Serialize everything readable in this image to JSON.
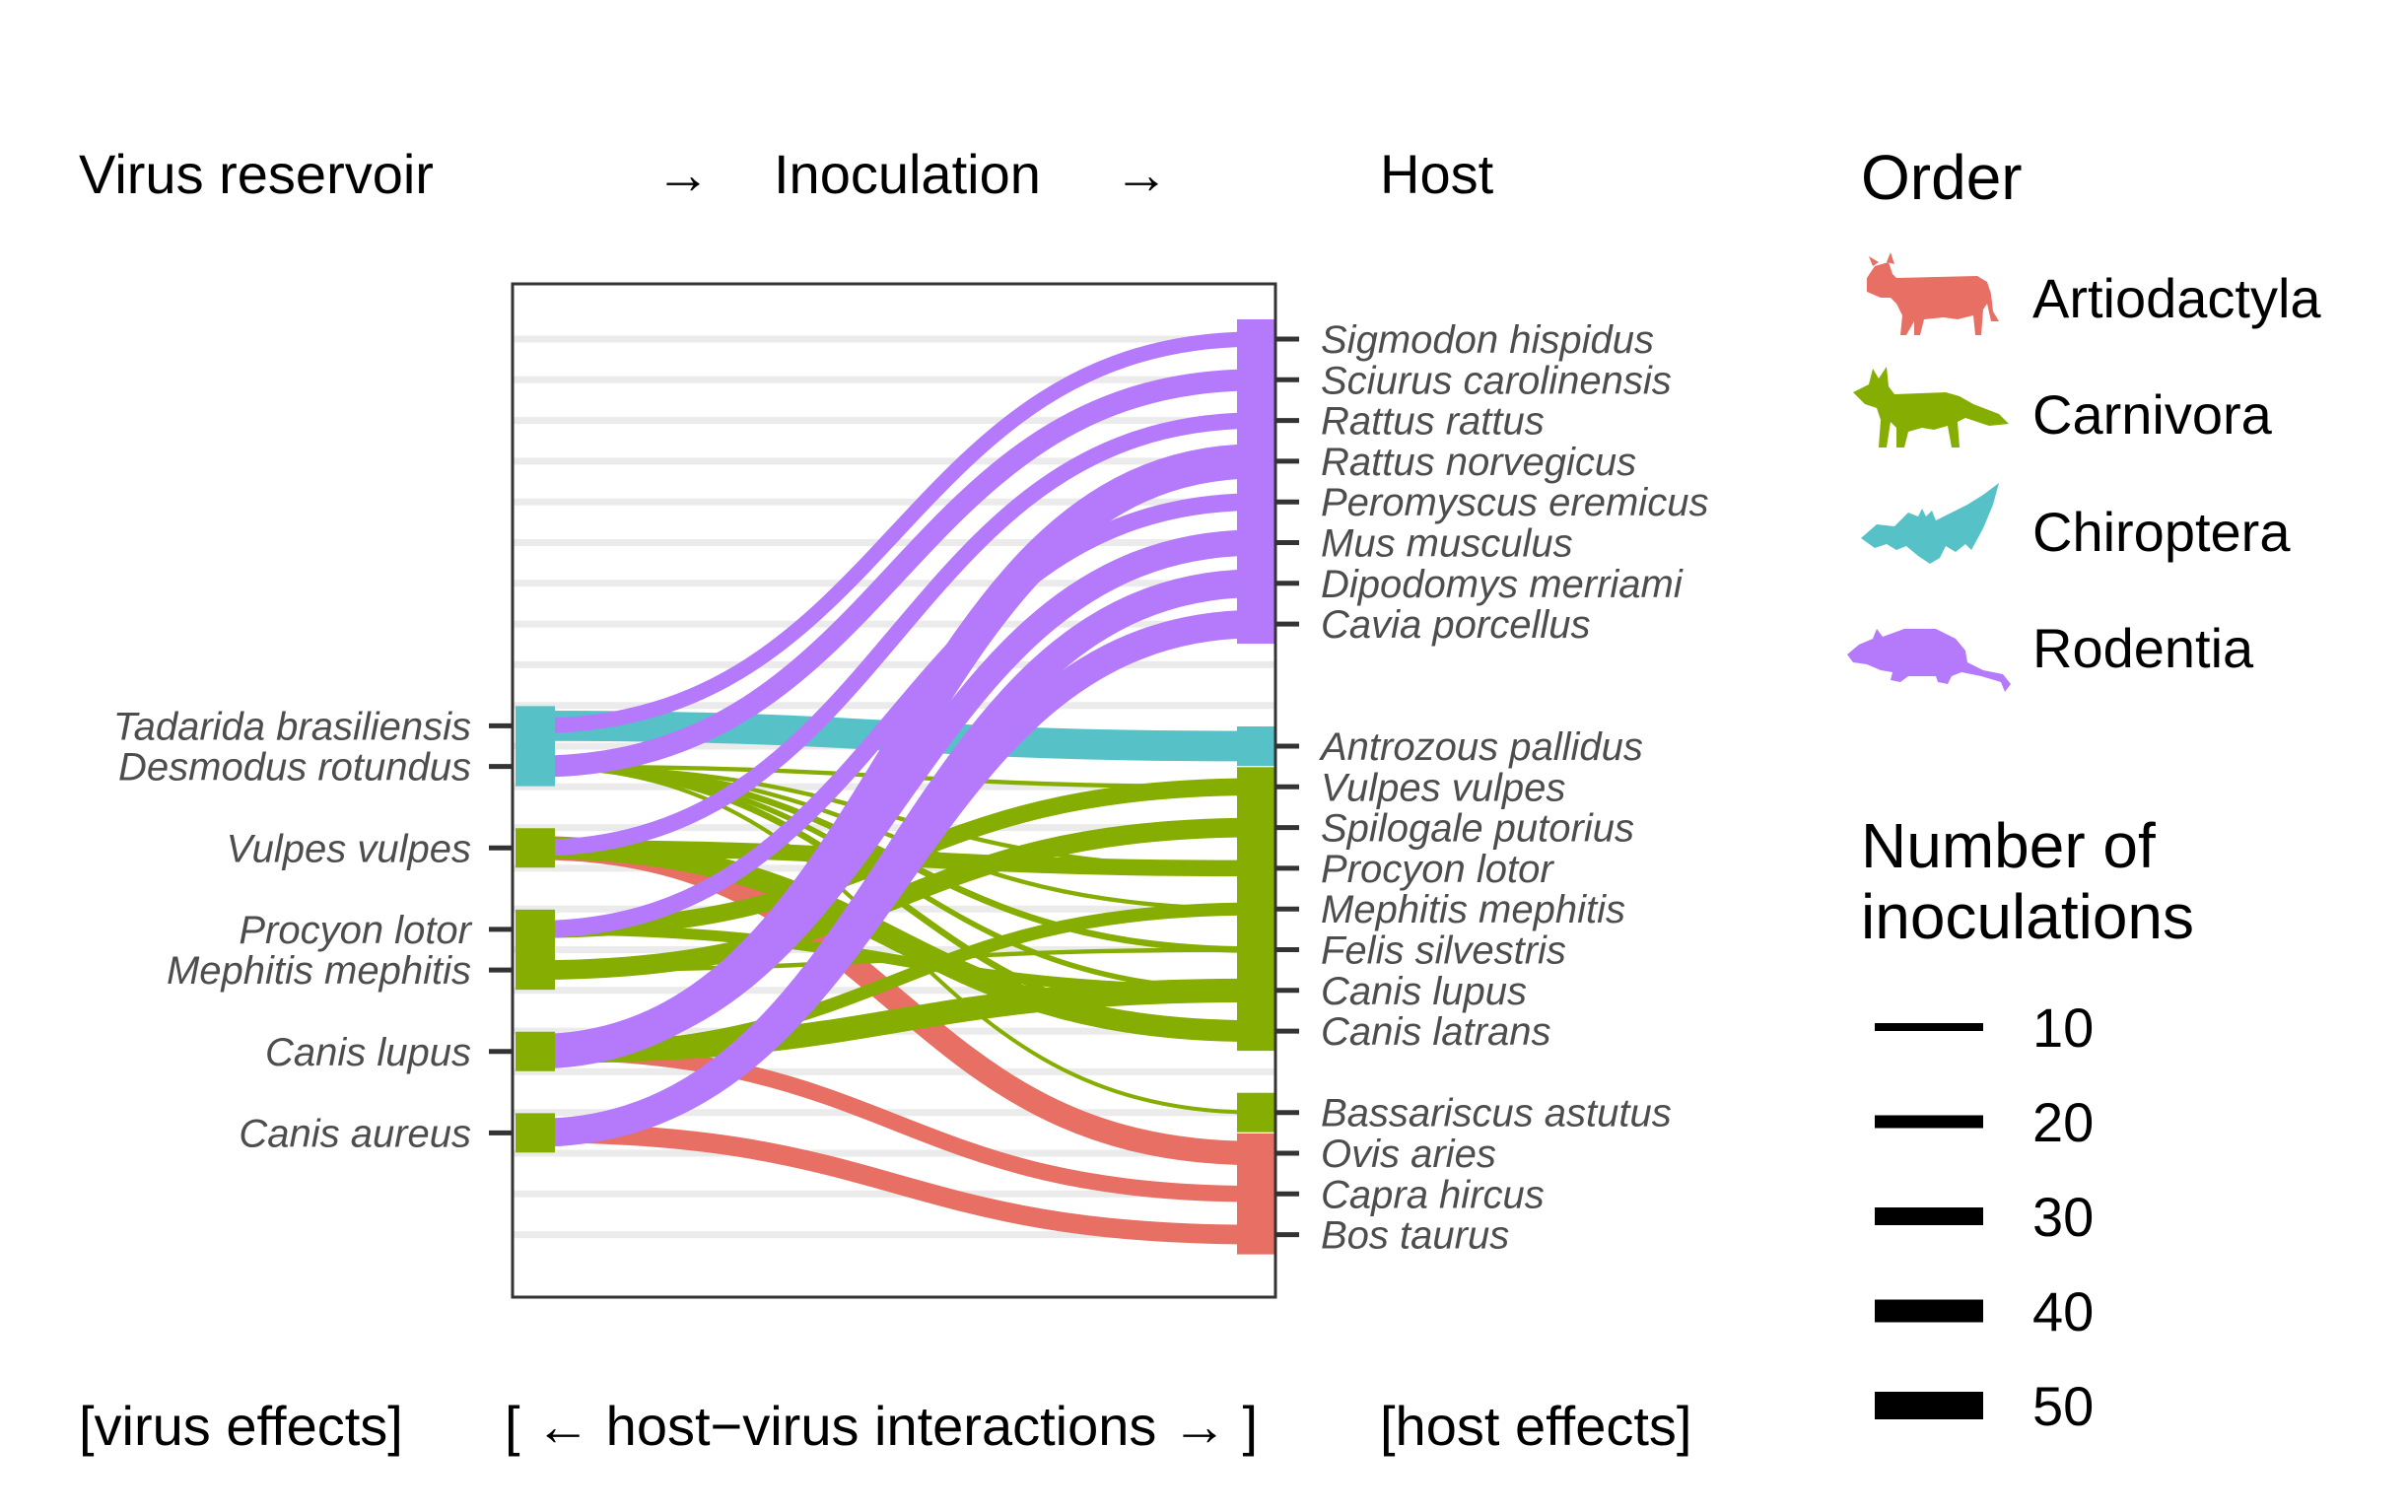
{
  "headers": {
    "reservoir": "Virus reservoir",
    "arrow1": "→",
    "inoculation": "Inoculation",
    "arrow2": "→",
    "host": "Host",
    "virus_effects": "[virus effects]",
    "interactions": "[ ← host−virus interactions → ]",
    "host_effects": "[host effects]"
  },
  "colors": {
    "Artiodactyla": "#E76F63",
    "Carnivora": "#86AE02",
    "Chiroptera": "#56C2C8",
    "Rodentia": "#B57AFB",
    "grid": "#ebebeb",
    "tick_text": "#4d4d4d"
  },
  "chart_data": {
    "type": "parallel-sets",
    "left_axis": {
      "rows": [
        {
          "label": "Tadarida brasiliensis",
          "order": "Chiroptera"
        },
        {
          "label": "Desmodus rotundus",
          "order": "Chiroptera"
        },
        {
          "label": "",
          "order": ""
        },
        {
          "label": "Vulpes vulpes",
          "order": "Carnivora"
        },
        {
          "label": "",
          "order": ""
        },
        {
          "label": "Procyon lotor",
          "order": "Carnivora"
        },
        {
          "label": "Mephitis mephitis",
          "order": "Carnivora"
        },
        {
          "label": "",
          "order": ""
        },
        {
          "label": "Canis lupus",
          "order": "Carnivora"
        },
        {
          "label": "",
          "order": ""
        },
        {
          "label": "Canis aureus",
          "order": "Carnivora"
        }
      ]
    },
    "right_axis": {
      "rows": [
        {
          "label": "Sigmodon hispidus",
          "order": "Rodentia"
        },
        {
          "label": "Sciurus carolinensis",
          "order": "Rodentia"
        },
        {
          "label": "Rattus rattus",
          "order": "Rodentia"
        },
        {
          "label": "Rattus norvegicus",
          "order": "Rodentia"
        },
        {
          "label": "Peromyscus eremicus",
          "order": "Rodentia"
        },
        {
          "label": "Mus musculus",
          "order": "Rodentia"
        },
        {
          "label": "Dipodomys merriami",
          "order": "Rodentia"
        },
        {
          "label": "Cavia porcellus",
          "order": "Rodentia"
        },
        {
          "label": "",
          "order": ""
        },
        {
          "label": "",
          "order": ""
        },
        {
          "label": "Antrozous pallidus",
          "order": "Chiroptera"
        },
        {
          "label": "Vulpes vulpes",
          "order": "Carnivora"
        },
        {
          "label": "Spilogale putorius",
          "order": "Carnivora"
        },
        {
          "label": "Procyon lotor",
          "order": "Carnivora"
        },
        {
          "label": "Mephitis mephitis",
          "order": "Carnivora"
        },
        {
          "label": "Felis silvestris",
          "order": "Carnivora"
        },
        {
          "label": "Canis lupus",
          "order": "Carnivora"
        },
        {
          "label": "Canis latrans",
          "order": "Carnivora"
        },
        {
          "label": "",
          "order": ""
        },
        {
          "label": "Bassariscus astutus",
          "order": "Carnivora"
        },
        {
          "label": "Ovis aries",
          "order": "Artiodactyla"
        },
        {
          "label": "Capra hircus",
          "order": "Artiodactyla"
        },
        {
          "label": "Bos taurus",
          "order": "Artiodactyla"
        }
      ]
    },
    "flows": [
      {
        "from": "Tadarida brasiliensis",
        "to": "Antrozous pallidus",
        "host_order": "Chiroptera",
        "n": 28
      },
      {
        "from": "Desmodus rotundus",
        "to": "Vulpes vulpes",
        "host_order": "Carnivora",
        "n": 4
      },
      {
        "from": "Desmodus rotundus",
        "to": "Procyon lotor",
        "host_order": "Carnivora",
        "n": 4
      },
      {
        "from": "Desmodus rotundus",
        "to": "Mephitis mephitis",
        "host_order": "Carnivora",
        "n": 4
      },
      {
        "from": "Desmodus rotundus",
        "to": "Felis silvestris",
        "host_order": "Carnivora",
        "n": 6
      },
      {
        "from": "Desmodus rotundus",
        "to": "Canis lupus",
        "host_order": "Carnivora",
        "n": 5
      },
      {
        "from": "Desmodus rotundus",
        "to": "Canis latrans",
        "host_order": "Carnivora",
        "n": 6
      },
      {
        "from": "Desmodus rotundus",
        "to": "Bassariscus astutus",
        "host_order": "Carnivora",
        "n": 3
      },
      {
        "from": "Tadarida brasiliensis",
        "to": "Sigmodon hispidus",
        "host_order": "Rodentia",
        "n": 14
      },
      {
        "from": "Desmodus rotundus",
        "to": "Sciurus carolinensis",
        "host_order": "Rodentia",
        "n": 20
      },
      {
        "from": "Vulpes vulpes",
        "to": "Rattus rattus",
        "host_order": "Rodentia",
        "n": 15
      },
      {
        "from": "Vulpes vulpes",
        "to": "Canis latrans",
        "host_order": "Carnivora",
        "n": 20
      },
      {
        "from": "Vulpes vulpes",
        "to": "Procyon lotor",
        "host_order": "Carnivora",
        "n": 15
      },
      {
        "from": "Vulpes vulpes",
        "to": "Ovis aries",
        "host_order": "Artiodactyla",
        "n": 22
      },
      {
        "from": "Procyon lotor",
        "to": "Peromyscus eremicus",
        "host_order": "Rodentia",
        "n": 16
      },
      {
        "from": "Procyon lotor",
        "to": "Vulpes vulpes",
        "host_order": "Carnivora",
        "n": 16
      },
      {
        "from": "Procyon lotor",
        "to": "Canis lupus",
        "host_order": "Carnivora",
        "n": 10
      },
      {
        "from": "Mephitis mephitis",
        "to": "Spilogale putorius",
        "host_order": "Carnivora",
        "n": 18
      },
      {
        "from": "Mephitis mephitis",
        "to": "Felis silvestris",
        "host_order": "Carnivora",
        "n": 4
      },
      {
        "from": "Canis lupus",
        "to": "Rattus norvegicus",
        "host_order": "Rodentia",
        "n": 32
      },
      {
        "from": "Canis lupus",
        "to": "Mus musculus",
        "host_order": "Rodentia",
        "n": 24
      },
      {
        "from": "Canis lupus",
        "to": "Canis lupus",
        "host_order": "Carnivora",
        "n": 22
      },
      {
        "from": "Canis lupus",
        "to": "Mephitis mephitis",
        "host_order": "Carnivora",
        "n": 12
      },
      {
        "from": "Canis lupus",
        "to": "Capra hircus",
        "host_order": "Artiodactyla",
        "n": 15
      },
      {
        "from": "Canis aureus",
        "to": "Dipodomys merriami",
        "host_order": "Rodentia",
        "n": 26
      },
      {
        "from": "Canis aureus",
        "to": "Cavia porcellus",
        "host_order": "Rodentia",
        "n": 26
      },
      {
        "from": "Canis aureus",
        "to": "Bos taurus",
        "host_order": "Artiodactyla",
        "n": 18
      }
    ],
    "legend": {
      "order_title": "Order",
      "orders": [
        {
          "name": "Artiodactyla",
          "icon": "cow-icon"
        },
        {
          "name": "Carnivora",
          "icon": "fox-icon"
        },
        {
          "name": "Chiroptera",
          "icon": "bat-icon"
        },
        {
          "name": "Rodentia",
          "icon": "rat-icon"
        }
      ],
      "size_title_line1": "Number of",
      "size_title_line2": "inoculations",
      "sizes": [
        10,
        20,
        30,
        40,
        50
      ]
    }
  }
}
